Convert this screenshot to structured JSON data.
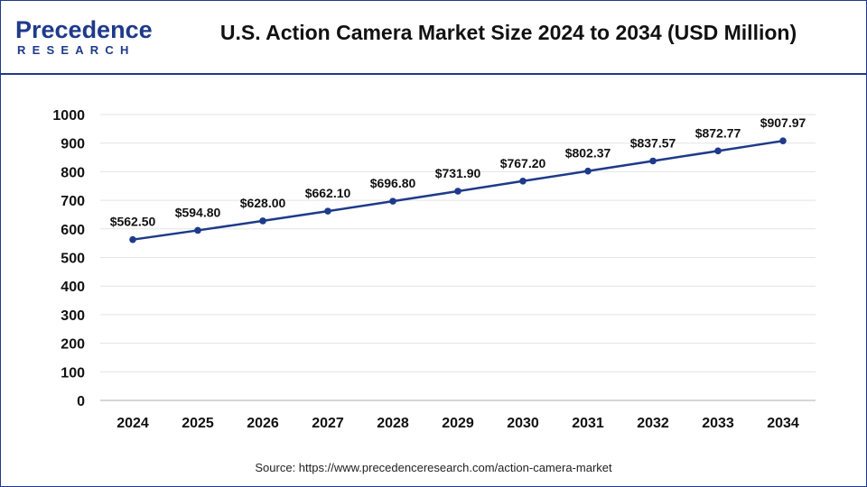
{
  "header": {
    "logo": {
      "name": "Precedence Research logo",
      "lines": [
        "Precedence",
        "RESEARCH"
      ],
      "accent_color": "#1e3a8a"
    }
  },
  "chart_data": {
    "type": "line",
    "title": "U.S. Action Camera Market Size 2024 to 2034 (USD Million)",
    "xlabel": "",
    "ylabel": "",
    "categories": [
      "2024",
      "2025",
      "2026",
      "2027",
      "2028",
      "2029",
      "2030",
      "2031",
      "2032",
      "2033",
      "2034"
    ],
    "series": [
      {
        "values": [
          562.5,
          594.8,
          628.0,
          662.1,
          696.8,
          731.9,
          767.2,
          802.37,
          837.57,
          872.77,
          907.97
        ],
        "data_labels": [
          "$562.50",
          "$594.80",
          "$628.00",
          "$662.10",
          "$696.80",
          "$731.90",
          "$767.20",
          "$802.37",
          "$837.57",
          "$872.77",
          "$907.97"
        ],
        "color": "#1e3a8a"
      }
    ],
    "ylim": [
      0,
      1000
    ],
    "yticks": [
      0,
      100,
      200,
      300,
      400,
      500,
      600,
      700,
      800,
      900,
      1000
    ],
    "grid": true,
    "legend": "none"
  },
  "footer": {
    "source": "Source: https://www.precedenceresearch.com/action-camera-market"
  }
}
